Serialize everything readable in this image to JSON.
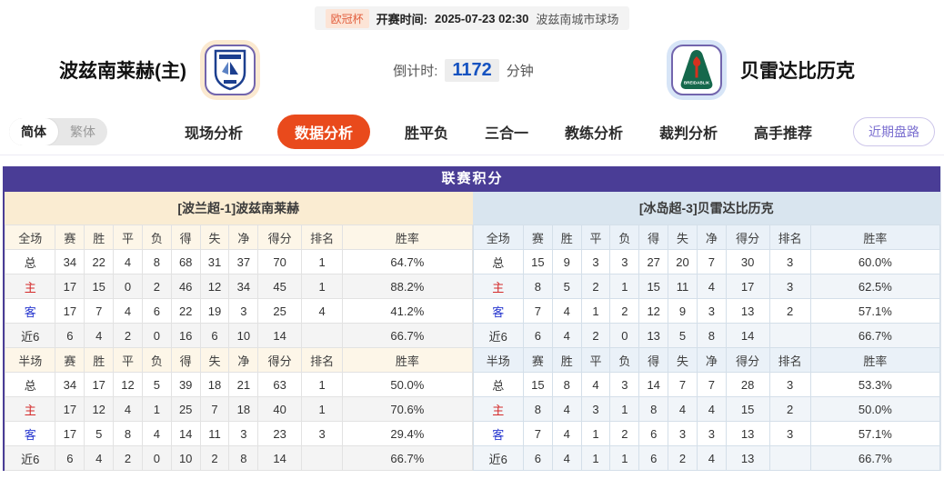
{
  "topbar": {
    "league_badge": "欧冠杯",
    "kickoff_label": "开赛时间:",
    "kickoff_time": "2025-07-23 02:30",
    "venue": "波兹南城市球场"
  },
  "match": {
    "home_name": "波兹南莱赫(主)",
    "away_name": "贝雷达比历克",
    "away_logo_text": "BREIDABLIK",
    "countdown_label": "倒计时:",
    "countdown_value": "1172",
    "countdown_unit": "分钟"
  },
  "lang_toggle": {
    "simplified": "简体",
    "traditional": "繁体"
  },
  "nav": {
    "tabs": [
      {
        "label": "现场分析",
        "active": false
      },
      {
        "label": "数据分析",
        "active": true
      },
      {
        "label": "胜平负",
        "active": false
      },
      {
        "label": "三合一",
        "active": false
      },
      {
        "label": "教练分析",
        "active": false
      },
      {
        "label": "裁判分析",
        "active": false
      },
      {
        "label": "高手推荐",
        "active": false
      }
    ],
    "recent_button": "近期盘路"
  },
  "colors": {
    "title_purple": "#4a3d96",
    "active_tab_orange": "#e94a1c",
    "home_subheader_cream": "#faecd2",
    "away_subheader_blue": "#d9e5ef",
    "home_label_red": "#d42a2a",
    "away_label_blue": "#2737cf",
    "countdown_blue": "#1552c0"
  },
  "table": {
    "title": "联赛积分",
    "home": {
      "subtitle": "[波兰超-1]波兹南莱赫",
      "sections": [
        {
          "header": [
            "全场",
            "赛",
            "胜",
            "平",
            "负",
            "得",
            "失",
            "净",
            "得分",
            "排名",
            "胜率"
          ],
          "rows": [
            {
              "label": "总",
              "type": "total",
              "cells": [
                "34",
                "22",
                "4",
                "8",
                "68",
                "31",
                "37",
                "70",
                "1",
                "64.7%"
              ]
            },
            {
              "label": "主",
              "type": "home",
              "cells": [
                "17",
                "15",
                "0",
                "2",
                "46",
                "12",
                "34",
                "45",
                "1",
                "88.2%"
              ]
            },
            {
              "label": "客",
              "type": "away",
              "cells": [
                "17",
                "7",
                "4",
                "6",
                "22",
                "19",
                "3",
                "25",
                "4",
                "41.2%"
              ]
            },
            {
              "label": "近6",
              "type": "recent",
              "cells": [
                "6",
                "4",
                "2",
                "0",
                "16",
                "6",
                "10",
                "14",
                "",
                "66.7%"
              ]
            }
          ]
        },
        {
          "header": [
            "半场",
            "赛",
            "胜",
            "平",
            "负",
            "得",
            "失",
            "净",
            "得分",
            "排名",
            "胜率"
          ],
          "rows": [
            {
              "label": "总",
              "type": "total",
              "cells": [
                "34",
                "17",
                "12",
                "5",
                "39",
                "18",
                "21",
                "63",
                "1",
                "50.0%"
              ]
            },
            {
              "label": "主",
              "type": "home",
              "cells": [
                "17",
                "12",
                "4",
                "1",
                "25",
                "7",
                "18",
                "40",
                "1",
                "70.6%"
              ]
            },
            {
              "label": "客",
              "type": "away",
              "cells": [
                "17",
                "5",
                "8",
                "4",
                "14",
                "11",
                "3",
                "23",
                "3",
                "29.4%"
              ]
            },
            {
              "label": "近6",
              "type": "recent",
              "cells": [
                "6",
                "4",
                "2",
                "0",
                "10",
                "2",
                "8",
                "14",
                "",
                "66.7%"
              ]
            }
          ]
        }
      ]
    },
    "away": {
      "subtitle": "[冰岛超-3]贝雷达比历克",
      "sections": [
        {
          "header": [
            "全场",
            "赛",
            "胜",
            "平",
            "负",
            "得",
            "失",
            "净",
            "得分",
            "排名",
            "胜率"
          ],
          "rows": [
            {
              "label": "总",
              "type": "total",
              "cells": [
                "15",
                "9",
                "3",
                "3",
                "27",
                "20",
                "7",
                "30",
                "3",
                "60.0%"
              ]
            },
            {
              "label": "主",
              "type": "home",
              "cells": [
                "8",
                "5",
                "2",
                "1",
                "15",
                "11",
                "4",
                "17",
                "3",
                "62.5%"
              ]
            },
            {
              "label": "客",
              "type": "away",
              "cells": [
                "7",
                "4",
                "1",
                "2",
                "12",
                "9",
                "3",
                "13",
                "2",
                "57.1%"
              ]
            },
            {
              "label": "近6",
              "type": "recent",
              "cells": [
                "6",
                "4",
                "2",
                "0",
                "13",
                "5",
                "8",
                "14",
                "",
                "66.7%"
              ]
            }
          ]
        },
        {
          "header": [
            "半场",
            "赛",
            "胜",
            "平",
            "负",
            "得",
            "失",
            "净",
            "得分",
            "排名",
            "胜率"
          ],
          "rows": [
            {
              "label": "总",
              "type": "total",
              "cells": [
                "15",
                "8",
                "4",
                "3",
                "14",
                "7",
                "7",
                "28",
                "3",
                "53.3%"
              ]
            },
            {
              "label": "主",
              "type": "home",
              "cells": [
                "8",
                "4",
                "3",
                "1",
                "8",
                "4",
                "4",
                "15",
                "2",
                "50.0%"
              ]
            },
            {
              "label": "客",
              "type": "away",
              "cells": [
                "7",
                "4",
                "1",
                "2",
                "6",
                "3",
                "3",
                "13",
                "3",
                "57.1%"
              ]
            },
            {
              "label": "近6",
              "type": "recent",
              "cells": [
                "6",
                "4",
                "1",
                "1",
                "6",
                "2",
                "4",
                "13",
                "",
                "66.7%"
              ]
            }
          ]
        }
      ]
    }
  }
}
